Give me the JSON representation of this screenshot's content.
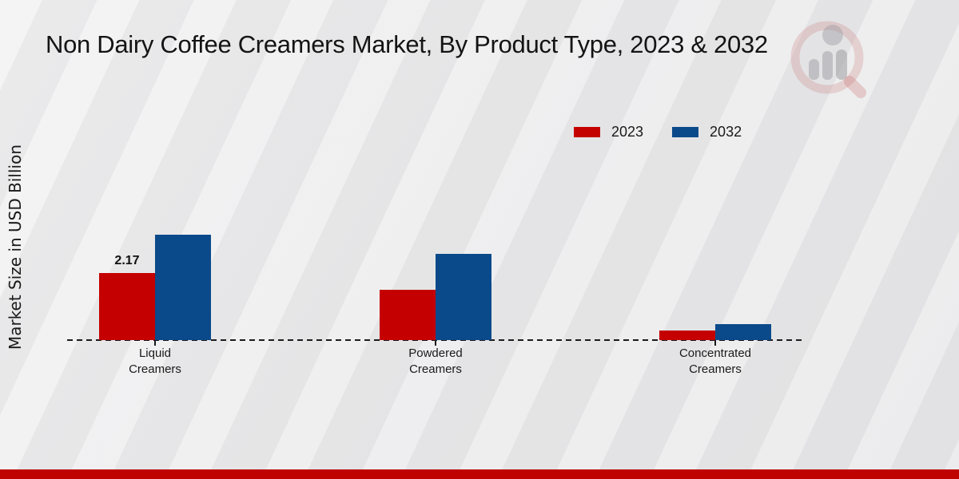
{
  "page": {
    "title": "Non Dairy Coffee Creamers Market, By Product Type, 2023 & 2032"
  },
  "colors": {
    "series_2023": "#c40000",
    "series_2032": "#0b4a8a",
    "bottom_band": "#bf0300",
    "axis": "#1b1b1b",
    "text": "#1a1a1a",
    "background": "#e9e9ea"
  },
  "legend": {
    "items": [
      {
        "label": "2023",
        "color": "#c40000"
      },
      {
        "label": "2032",
        "color": "#0b4a8a"
      }
    ]
  },
  "chart_data": {
    "type": "bar",
    "title": "Non Dairy Coffee Creamers Market, By Product Type, 2023 & 2032",
    "xlabel": "",
    "ylabel": "Market Size in USD Billion",
    "categories": [
      "Liquid\nCreamers",
      "Powdered\nCreamers",
      "Concentrated\nCreamers"
    ],
    "series": [
      {
        "name": "2023",
        "color": "#c40000",
        "values": [
          2.17,
          1.63,
          0.31
        ]
      },
      {
        "name": "2032",
        "color": "#0b4a8a",
        "values": [
          3.41,
          2.79,
          0.52
        ]
      }
    ],
    "annotations": [
      {
        "category_index": 0,
        "series_index": 0,
        "text": "2.17"
      }
    ],
    "ylim": [
      0,
      4
    ],
    "grid": false,
    "baseline_style": "dashed",
    "legend_position": "top-right",
    "note_only_labeled_value": "2.17 is the only value printed on the chart; other values estimated from bar heights"
  },
  "watermark": {
    "name": "market-research-logo"
  }
}
